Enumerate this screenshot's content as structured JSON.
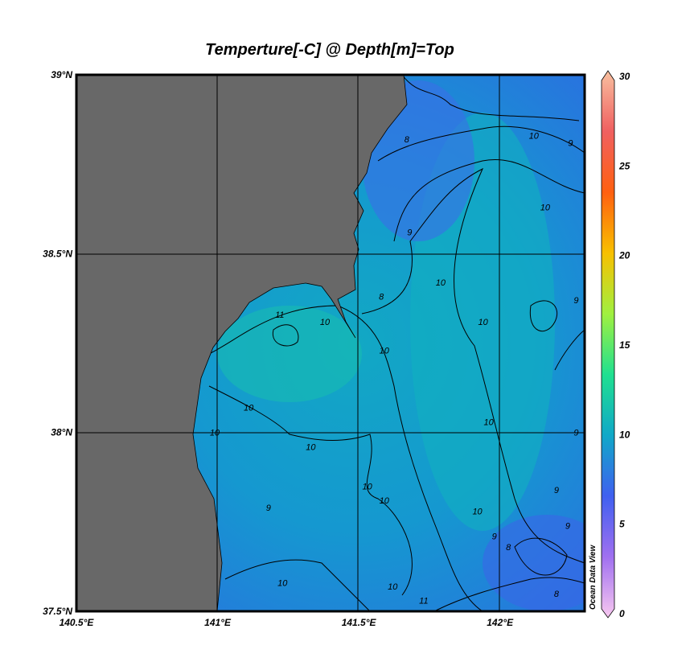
{
  "chart_data": {
    "type": "heatmap",
    "title": "Temperture[-C] @ Depth[m]=Top",
    "x_axis": {
      "range": [
        140.5,
        142.3
      ],
      "ticks": [
        140.5,
        141.0,
        141.5,
        142.0
      ],
      "tick_labels": [
        "140.5°E",
        "141°E",
        "141.5°E",
        "142°E"
      ]
    },
    "y_axis": {
      "range": [
        37.5,
        39.0
      ],
      "ticks": [
        37.5,
        38.0,
        38.5,
        39.0
      ],
      "tick_labels": [
        "37.5°N",
        "38°N",
        "38.5°N",
        "39°N"
      ]
    },
    "grid": true,
    "land_color": "#686868",
    "colorbar": {
      "range": [
        0,
        30
      ],
      "ticks": [
        "0",
        "5",
        "10",
        "15",
        "20",
        "25",
        "30"
      ],
      "colors": [
        "#f8c8f0",
        "#a070f0",
        "#4060f0",
        "#10a8c8",
        "#20e090",
        "#a0f040",
        "#f8c000",
        "#ff6010",
        "#f06060",
        "#f8c0a0"
      ],
      "placement": "right"
    },
    "contour_labels": [
      {
        "lon": 141.67,
        "lat": 38.82,
        "text": "8"
      },
      {
        "lon": 142.12,
        "lat": 38.83,
        "text": "10"
      },
      {
        "lon": 142.25,
        "lat": 38.81,
        "text": "9"
      },
      {
        "lon": 142.16,
        "lat": 38.63,
        "text": "10"
      },
      {
        "lon": 141.68,
        "lat": 38.56,
        "text": "9"
      },
      {
        "lon": 141.79,
        "lat": 38.42,
        "text": "10"
      },
      {
        "lon": 141.94,
        "lat": 38.31,
        "text": "10"
      },
      {
        "lon": 141.22,
        "lat": 38.33,
        "text": "11"
      },
      {
        "lon": 141.38,
        "lat": 38.31,
        "text": "10"
      },
      {
        "lon": 141.59,
        "lat": 38.23,
        "text": "10"
      },
      {
        "lon": 141.58,
        "lat": 38.38,
        "text": "8"
      },
      {
        "lon": 141.11,
        "lat": 38.07,
        "text": "10"
      },
      {
        "lon": 141.96,
        "lat": 38.03,
        "text": "10"
      },
      {
        "lon": 140.99,
        "lat": 38.0,
        "text": "10"
      },
      {
        "lon": 141.33,
        "lat": 37.96,
        "text": "10"
      },
      {
        "lon": 142.27,
        "lat": 38.37,
        "text": "9"
      },
      {
        "lon": 142.27,
        "lat": 38.0,
        "text": "9"
      },
      {
        "lon": 142.2,
        "lat": 37.84,
        "text": "9"
      },
      {
        "lon": 141.53,
        "lat": 37.85,
        "text": "10"
      },
      {
        "lon": 141.59,
        "lat": 37.81,
        "text": "10"
      },
      {
        "lon": 141.18,
        "lat": 37.79,
        "text": "9"
      },
      {
        "lon": 141.92,
        "lat": 37.78,
        "text": "10"
      },
      {
        "lon": 141.98,
        "lat": 37.71,
        "text": "9"
      },
      {
        "lon": 142.03,
        "lat": 37.68,
        "text": "8"
      },
      {
        "lon": 142.24,
        "lat": 37.74,
        "text": "9"
      },
      {
        "lon": 141.23,
        "lat": 37.58,
        "text": "10"
      },
      {
        "lon": 141.62,
        "lat": 37.57,
        "text": "10"
      },
      {
        "lon": 141.73,
        "lat": 37.53,
        "text": "11"
      },
      {
        "lon": 142.2,
        "lat": 37.55,
        "text": "8"
      }
    ],
    "watermark": "Ocean Data View"
  }
}
